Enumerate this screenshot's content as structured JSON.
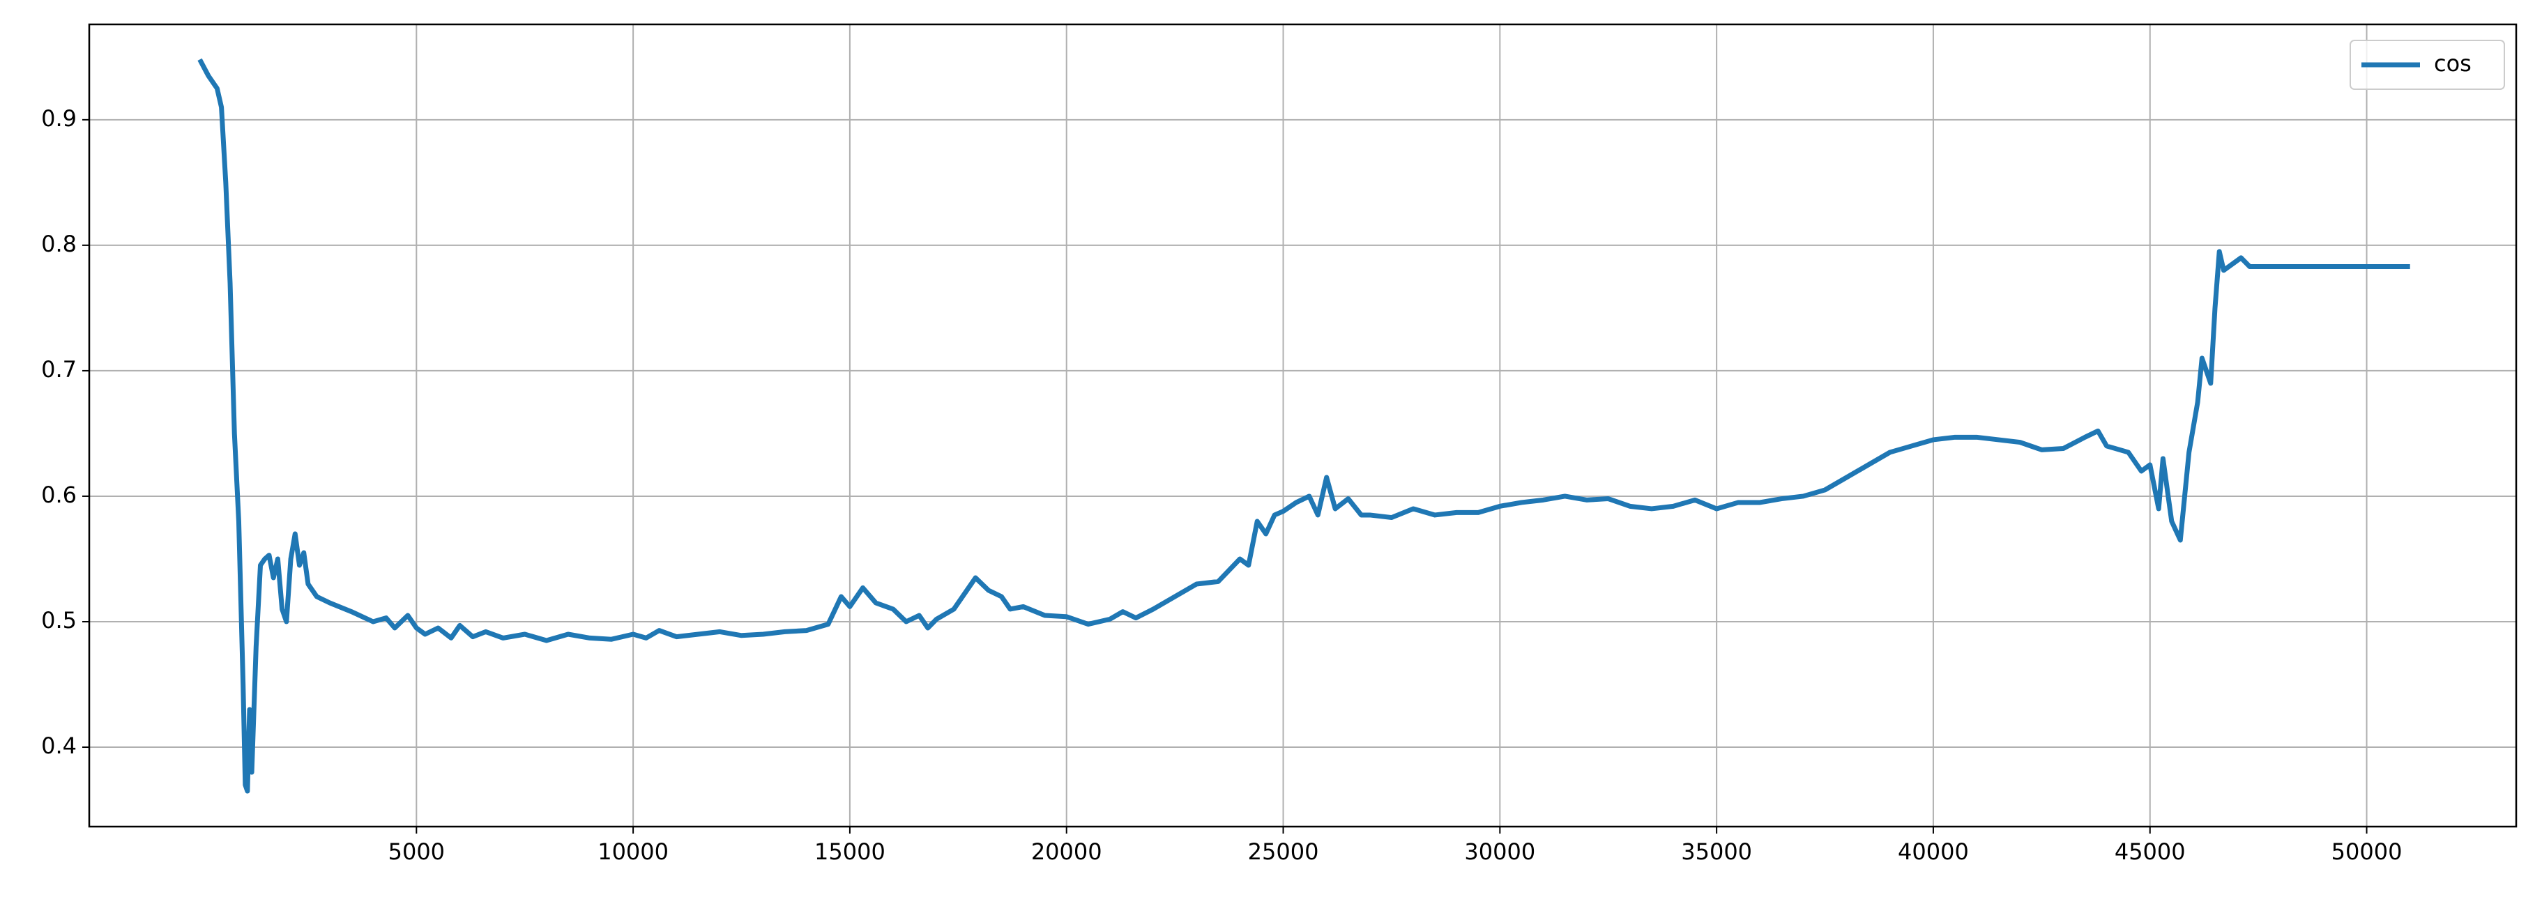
{
  "chart_data": {
    "type": "line",
    "x": [
      0,
      200,
      400,
      500,
      600,
      700,
      800,
      900,
      1000,
      1050,
      1100,
      1150,
      1200,
      1300,
      1400,
      1500,
      1600,
      1700,
      1800,
      1900,
      2000,
      2100,
      2200,
      2300,
      2400,
      2500,
      2700,
      3000,
      3500,
      4000,
      4300,
      4500,
      4800,
      5000,
      5200,
      5500,
      5800,
      6000,
      6300,
      6600,
      7000,
      7500,
      8000,
      8500,
      9000,
      9500,
      10000,
      10300,
      10600,
      11000,
      11500,
      12000,
      12500,
      13000,
      13500,
      14000,
      14500,
      14800,
      15000,
      15300,
      15600,
      16000,
      16300,
      16600,
      16800,
      17000,
      17400,
      17600,
      17900,
      18200,
      18500,
      18700,
      19000,
      19500,
      20000,
      20500,
      21000,
      21300,
      21600,
      22000,
      22500,
      23000,
      23500,
      24000,
      24200,
      24400,
      24600,
      24800,
      25000,
      25300,
      25600,
      25800,
      26000,
      26200,
      26500,
      26800,
      27000,
      27500,
      28000,
      28500,
      29000,
      29500,
      30000,
      30500,
      31000,
      31500,
      32000,
      32500,
      33000,
      33500,
      34000,
      34500,
      35000,
      35500,
      36000,
      36500,
      37000,
      37500,
      38000,
      38500,
      39000,
      39500,
      40000,
      40500,
      41000,
      41500,
      42000,
      42500,
      43000,
      43500,
      43800,
      44000,
      44500,
      44800,
      45000,
      45200,
      45300,
      45500,
      45700,
      45800,
      45900,
      46100,
      46200,
      46400,
      46500,
      46600,
      46700,
      46900,
      47100,
      47300,
      51000
    ],
    "series": [
      {
        "name": "cos",
        "color": "#1f77b4",
        "values": [
          0.948,
          0.935,
          0.925,
          0.91,
          0.85,
          0.77,
          0.65,
          0.58,
          0.45,
          0.37,
          0.365,
          0.43,
          0.38,
          0.48,
          0.545,
          0.55,
          0.553,
          0.535,
          0.55,
          0.51,
          0.5,
          0.55,
          0.57,
          0.545,
          0.555,
          0.53,
          0.52,
          0.515,
          0.508,
          0.5,
          0.503,
          0.495,
          0.505,
          0.495,
          0.49,
          0.495,
          0.487,
          0.497,
          0.488,
          0.492,
          0.487,
          0.49,
          0.485,
          0.49,
          0.487,
          0.486,
          0.49,
          0.487,
          0.493,
          0.488,
          0.49,
          0.492,
          0.489,
          0.49,
          0.492,
          0.493,
          0.498,
          0.52,
          0.512,
          0.527,
          0.515,
          0.51,
          0.5,
          0.505,
          0.495,
          0.502,
          0.51,
          0.52,
          0.535,
          0.525,
          0.52,
          0.51,
          0.512,
          0.505,
          0.504,
          0.498,
          0.502,
          0.508,
          0.503,
          0.51,
          0.52,
          0.53,
          0.532,
          0.55,
          0.545,
          0.58,
          0.57,
          0.585,
          0.588,
          0.595,
          0.6,
          0.585,
          0.615,
          0.59,
          0.598,
          0.585,
          0.585,
          0.583,
          0.59,
          0.585,
          0.587,
          0.587,
          0.592,
          0.595,
          0.597,
          0.6,
          0.597,
          0.598,
          0.592,
          0.59,
          0.592,
          0.597,
          0.59,
          0.595,
          0.595,
          0.598,
          0.6,
          0.605,
          0.615,
          0.625,
          0.635,
          0.64,
          0.645,
          0.647,
          0.647,
          0.645,
          0.643,
          0.637,
          0.638,
          0.647,
          0.652,
          0.64,
          0.635,
          0.62,
          0.625,
          0.59,
          0.63,
          0.58,
          0.565,
          0.6,
          0.635,
          0.675,
          0.71,
          0.69,
          0.75,
          0.795,
          0.78,
          0.785,
          0.79,
          0.783,
          0.783
        ]
      }
    ],
    "xlim": [
      -2550,
      53450
    ],
    "ylim": [
      0.3367,
      0.976
    ],
    "xticks": [
      5000,
      10000,
      15000,
      20000,
      25000,
      30000,
      35000,
      40000,
      45000,
      50000
    ],
    "yticks": [
      0.4,
      0.5,
      0.6,
      0.7,
      0.8,
      0.9
    ],
    "grid": true,
    "legend": "upper right"
  }
}
